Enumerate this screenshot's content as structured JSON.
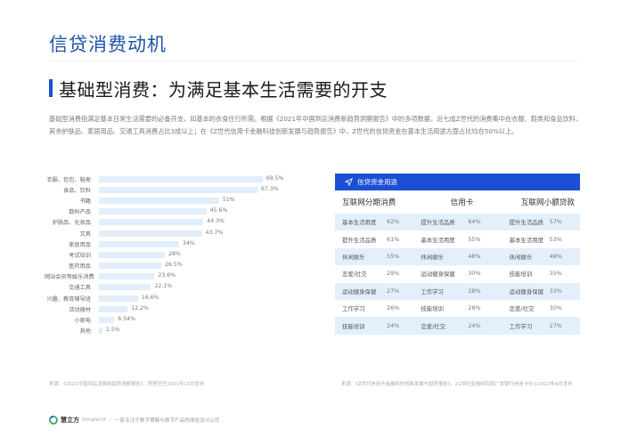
{
  "header": {
    "page_title": "信贷消费动机",
    "section_heading": "基础型消费：为满足基本生活需要的开支"
  },
  "intro": {
    "text": "基础型消费指满足基本日常生活需要的必备开支，如基本的衣食住行所需。根据《2021年中国到店消费新趋势洞察报告》中的多项数据，近七成Z世代的消费集中在衣服、鞋类和食品饮料，其余护肤品、家居用品、交通工具消费占比3成以上；在《Z世代信用卡金融科技创新发展与趋势报告》中，Z世代的信贷资金在基本生活用途方面占比均在50%以上。"
  },
  "chart_data": {
    "type": "bar",
    "orientation": "horizontal",
    "title": "",
    "xlabel": "",
    "ylabel": "",
    "categories": [
      "衣服、包包、鞋类",
      "食品、饮料",
      "书籍",
      "数码产品",
      "护肤品、化妆品",
      "文具",
      "家居用品",
      "考试培训",
      "医药用品",
      "网站会员等娱乐消费",
      "交通工具",
      "兴趣、教育辅导班",
      "活动器材",
      "小家电",
      "其他"
    ],
    "values": [
      69.5,
      67.3,
      51,
      45.6,
      44.3,
      43.7,
      34,
      28,
      26.5,
      23.6,
      22.1,
      16.6,
      12.2,
      6.54,
      1.5
    ],
    "value_labels": [
      "69.5%",
      "67.3%",
      "51%",
      "45.6%",
      "44.3%",
      "43.7%",
      "34%",
      "28%",
      "26.5%",
      "23.6%",
      "22.1%",
      "16.6%",
      "12.2%",
      "6.54%",
      "1.5%"
    ],
    "xlim": [
      0,
      100
    ],
    "grid": false,
    "legend": "none",
    "bar_color": "#e1eefb"
  },
  "chart_rows": [
    {
      "label": "衣服、包包、鞋类",
      "value": "69.5%",
      "pct": 69.5
    },
    {
      "label": "食品、饮料",
      "value": "67.3%",
      "pct": 67.3
    },
    {
      "label": "书籍",
      "value": "51%",
      "pct": 51
    },
    {
      "label": "数码产品",
      "value": "45.6%",
      "pct": 45.6
    },
    {
      "label": "护肤品、化妆品",
      "value": "44.3%",
      "pct": 44.3
    },
    {
      "label": "文具",
      "value": "43.7%",
      "pct": 43.7
    },
    {
      "label": "家居用品",
      "value": "34%",
      "pct": 34
    },
    {
      "label": "考试培训",
      "value": "28%",
      "pct": 28
    },
    {
      "label": "医药用品",
      "value": "26.5%",
      "pct": 26.5
    },
    {
      "label": "网站会员等娱乐消费",
      "value": "23.6%",
      "pct": 23.6
    },
    {
      "label": "交通工具",
      "value": "22.1%",
      "pct": 22.1
    },
    {
      "label": "兴趣、教育辅导班",
      "value": "16.6%",
      "pct": 16.6
    },
    {
      "label": "活动器材",
      "value": "12.2%",
      "pct": 12.2
    },
    {
      "label": "小家电",
      "value": "6.54%",
      "pct": 6.54
    },
    {
      "label": "其他",
      "value": "1.5%",
      "pct": 1.5
    }
  ],
  "table": {
    "title": "信贷资金用途",
    "icon": "send-icon",
    "columns": [
      "互联网分期消费",
      "信用卡",
      "互联网小额贷款"
    ],
    "rows": [
      [
        {
          "name": "基本生活用度",
          "pct": "62%"
        },
        {
          "name": "提升生活品质",
          "pct": "64%"
        },
        {
          "name": "提升生活品质",
          "pct": "57%"
        }
      ],
      [
        {
          "name": "提升生活品质",
          "pct": "61%"
        },
        {
          "name": "基本生活用度",
          "pct": "55%"
        },
        {
          "name": "基本生活用度",
          "pct": "53%"
        }
      ],
      [
        {
          "name": "休闲娱乐",
          "pct": "55%"
        },
        {
          "name": "休闲娱乐",
          "pct": "48%"
        },
        {
          "name": "休闲娱乐",
          "pct": "48%"
        }
      ],
      [
        {
          "name": "恋爱/社交",
          "pct": "29%"
        },
        {
          "name": "运动健身保健",
          "pct": "30%"
        },
        {
          "name": "技能培训",
          "pct": "35%"
        }
      ],
      [
        {
          "name": "运动健身保健",
          "pct": "27%"
        },
        {
          "name": "工作学习",
          "pct": "28%"
        },
        {
          "name": "运动健身保健",
          "pct": "33%"
        }
      ],
      [
        {
          "name": "工作学习",
          "pct": "26%"
        },
        {
          "name": "技能培训",
          "pct": "28%"
        },
        {
          "name": "恋爱/社交",
          "pct": "30%"
        }
      ],
      [
        {
          "name": "技能培训",
          "pct": "24%"
        },
        {
          "name": "恋爱/社交",
          "pct": "24%"
        },
        {
          "name": "工作学习",
          "pct": "27%"
        }
      ]
    ]
  },
  "sources": {
    "left": "来源：《2021中国到店消费新趋势洞察报告》，阿里巴巴2021年11月发布",
    "right": "来源：《Z世代信用卡金融科技创新发展与趋势报告》，21世纪金融研究院广发银行信用卡中心2022年4月发布"
  },
  "footer": {
    "brand_cn": "慧立方",
    "brand_en": "SimpleUX",
    "separator": "|",
    "tagline": "一家专注于数字策略与数字产品的体验设计公司"
  },
  "colors": {
    "title_blue": "#1f55a8",
    "accent_blue": "#1a4fd6",
    "bar_fill": "#e1eefb",
    "row_alt": "#e3f0fc"
  }
}
